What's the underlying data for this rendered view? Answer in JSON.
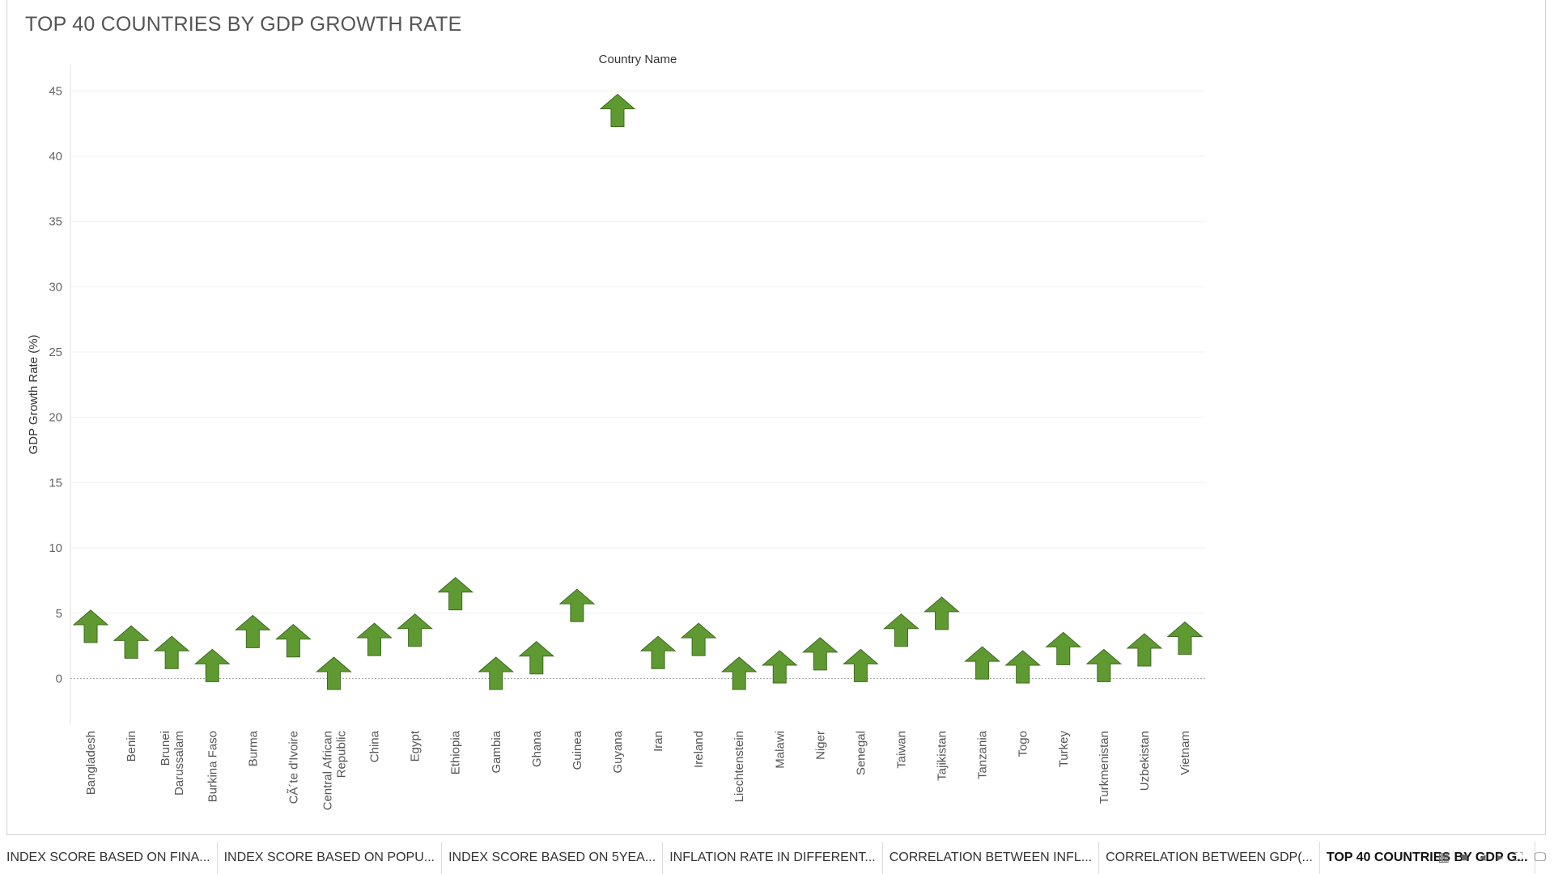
{
  "title": "TOP 40 COUNTRIES BY GDP GROWTH RATE",
  "chart_data": {
    "type": "scatter",
    "title": "TOP 40 COUNTRIES BY GDP GROWTH RATE",
    "column_header": "Country Name",
    "ylabel": "GDP Growth Rate (%)",
    "ylim": [
      -3.5,
      47
    ],
    "yticks": [
      0,
      5,
      10,
      15,
      20,
      25,
      30,
      35,
      40,
      45
    ],
    "grid": true,
    "mark": "up-arrow",
    "mark_color": "#5e9a31",
    "categories": [
      "Bangladesh",
      "Benin",
      "Brunei Darussalam",
      "Burkina Faso",
      "Burma",
      "CÃ´te d'Ivoire",
      "Central African Republic",
      "China",
      "Egypt",
      "Ethiopia",
      "Gambia",
      "Ghana",
      "Guinea",
      "Guyana",
      "Iran",
      "Ireland",
      "Liechtenstein",
      "Malawi",
      "Niger",
      "Senegal",
      "Taiwan",
      "Tajikistan",
      "Tanzania",
      "Togo",
      "Turkey",
      "Turkmenistan",
      "Uzbekistan",
      "Vietnam"
    ],
    "category_lines": [
      [
        "Bangladesh"
      ],
      [
        "Benin"
      ],
      [
        "Brunei",
        "Darussalam"
      ],
      [
        "Burkina Faso"
      ],
      [
        "Burma"
      ],
      [
        "CÃ´te d'Ivoire"
      ],
      [
        "Central African",
        "Republic"
      ],
      [
        "China"
      ],
      [
        "Egypt"
      ],
      [
        "Ethiopia"
      ],
      [
        "Gambia"
      ],
      [
        "Ghana"
      ],
      [
        "Guinea"
      ],
      [
        "Guyana"
      ],
      [
        "Iran"
      ],
      [
        "Ireland"
      ],
      [
        "Liechtenstein"
      ],
      [
        "Malawi"
      ],
      [
        "Niger"
      ],
      [
        "Senegal"
      ],
      [
        "Taiwan"
      ],
      [
        "Tajikistan"
      ],
      [
        "Tanzania"
      ],
      [
        "Togo"
      ],
      [
        "Turkey"
      ],
      [
        "Turkmenistan"
      ],
      [
        "Uzbekistan"
      ],
      [
        "Vietnam"
      ]
    ],
    "values": [
      4.0,
      2.8,
      2.0,
      1.0,
      3.6,
      2.9,
      0.4,
      3.0,
      3.7,
      6.5,
      0.4,
      1.6,
      5.6,
      43.5,
      2.0,
      3.0,
      0.4,
      0.9,
      1.9,
      1.0,
      3.7,
      5.0,
      1.2,
      0.9,
      2.3,
      1.0,
      2.2,
      3.1
    ]
  },
  "tabs": [
    {
      "label": "INDEX SCORE BASED ON  FINA...",
      "active": false
    },
    {
      "label": "INDEX SCORE BASED ON POPU...",
      "active": false
    },
    {
      "label": "INDEX SCORE BASED ON 5YEA...",
      "active": false
    },
    {
      "label": "INFLATION RATE IN DIFFERENT...",
      "active": false
    },
    {
      "label": "CORRELATION BETWEEN INFL...",
      "active": false
    },
    {
      "label": "CORRELATION BETWEEN GDP(...",
      "active": false
    },
    {
      "label": "TOP 40 COUNTRIES BY GDP G...",
      "active": true
    }
  ],
  "controls": {
    "grid_icon": "▦",
    "square_icon": "■",
    "prev_icon": "◂",
    "next_icon": "▸",
    "fullscreen_icon": "⛶",
    "present_icon": "🖵"
  }
}
